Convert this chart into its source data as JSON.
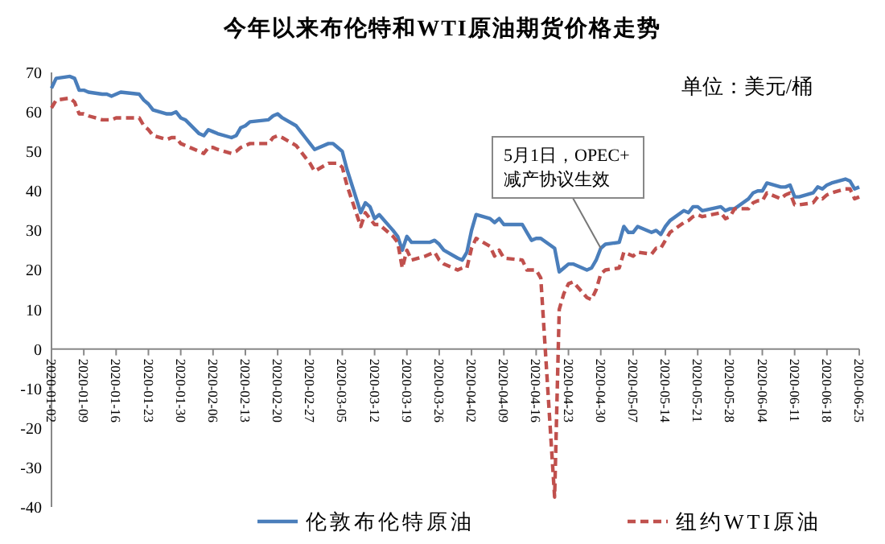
{
  "chart_data": {
    "type": "line",
    "title": "今年以来布伦特和WTI原油期货价格走势",
    "x": [
      "2020-01-02",
      "2020-01-03",
      "2020-01-06",
      "2020-01-07",
      "2020-01-08",
      "2020-01-09",
      "2020-01-10",
      "2020-01-13",
      "2020-01-14",
      "2020-01-15",
      "2020-01-16",
      "2020-01-17",
      "2020-01-21",
      "2020-01-22",
      "2020-01-23",
      "2020-01-24",
      "2020-01-27",
      "2020-01-28",
      "2020-01-29",
      "2020-01-30",
      "2020-01-31",
      "2020-02-03",
      "2020-02-04",
      "2020-02-05",
      "2020-02-06",
      "2020-02-07",
      "2020-02-10",
      "2020-02-11",
      "2020-02-12",
      "2020-02-13",
      "2020-02-14",
      "2020-02-18",
      "2020-02-19",
      "2020-02-20",
      "2020-02-21",
      "2020-02-24",
      "2020-02-25",
      "2020-02-26",
      "2020-02-27",
      "2020-02-28",
      "2020-03-02",
      "2020-03-03",
      "2020-03-04",
      "2020-03-05",
      "2020-03-06",
      "2020-03-09",
      "2020-03-10",
      "2020-03-11",
      "2020-03-12",
      "2020-03-13",
      "2020-03-16",
      "2020-03-17",
      "2020-03-18",
      "2020-03-19",
      "2020-03-20",
      "2020-03-23",
      "2020-03-24",
      "2020-03-25",
      "2020-03-26",
      "2020-03-27",
      "2020-03-30",
      "2020-03-31",
      "2020-04-01",
      "2020-04-02",
      "2020-04-03",
      "2020-04-06",
      "2020-04-07",
      "2020-04-08",
      "2020-04-09",
      "2020-04-13",
      "2020-04-14",
      "2020-04-15",
      "2020-04-16",
      "2020-04-17",
      "2020-04-20",
      "2020-04-21",
      "2020-04-22",
      "2020-04-23",
      "2020-04-24",
      "2020-04-27",
      "2020-04-28",
      "2020-04-29",
      "2020-04-30",
      "2020-05-01",
      "2020-05-04",
      "2020-05-05",
      "2020-05-06",
      "2020-05-07",
      "2020-05-08",
      "2020-05-11",
      "2020-05-12",
      "2020-05-13",
      "2020-05-14",
      "2020-05-15",
      "2020-05-18",
      "2020-05-19",
      "2020-05-20",
      "2020-05-21",
      "2020-05-22",
      "2020-05-26",
      "2020-05-27",
      "2020-05-28",
      "2020-05-29",
      "2020-06-01",
      "2020-06-02",
      "2020-06-03",
      "2020-06-04",
      "2020-06-05",
      "2020-06-08",
      "2020-06-09",
      "2020-06-10",
      "2020-06-11",
      "2020-06-12",
      "2020-06-15",
      "2020-06-16",
      "2020-06-17",
      "2020-06-18",
      "2020-06-19",
      "2020-06-22",
      "2020-06-23",
      "2020-06-24",
      "2020-06-25"
    ],
    "series": [
      {
        "name": "伦敦布伦特原油",
        "color": "#4a7ebb",
        "line_style": "solid",
        "values": [
          66,
          68.5,
          69,
          68.5,
          65.5,
          65.5,
          65,
          64.5,
          64.5,
          64,
          64.5,
          65,
          64.5,
          63,
          62,
          60.5,
          59.5,
          59.5,
          60,
          58.5,
          58,
          54.5,
          54,
          55.5,
          55,
          54.5,
          53.5,
          54,
          56,
          56.5,
          57.5,
          58,
          59,
          59.5,
          58.5,
          56.5,
          55,
          53.5,
          52,
          50.5,
          52,
          52,
          51,
          50,
          45.5,
          34.5,
          37,
          36,
          33,
          34,
          30,
          28.5,
          25,
          28.5,
          27,
          27,
          27,
          27.5,
          26.5,
          25,
          23,
          22.5,
          24.5,
          30,
          34,
          33,
          32,
          33,
          31.5,
          31.5,
          29.5,
          27.5,
          28,
          28,
          25.5,
          19.5,
          20.5,
          21.5,
          21.5,
          20,
          20.5,
          22.5,
          25.5,
          26.5,
          27,
          31,
          29.5,
          29.5,
          31,
          29.5,
          30,
          29,
          31,
          32.5,
          35,
          34.5,
          36,
          36,
          35,
          36,
          35,
          35.5,
          35.5,
          38,
          39.5,
          40,
          40,
          42,
          41,
          41,
          41.5,
          38.5,
          38.5,
          39.5,
          41,
          40.5,
          41.5,
          42,
          43,
          42.5,
          40.5,
          41
        ]
      },
      {
        "name": "纽约WTI原油",
        "color": "#c0504d",
        "line_style": "dashed",
        "values": [
          61,
          63,
          63.5,
          62.5,
          59.5,
          59.5,
          59,
          58,
          58,
          58,
          58.5,
          58.5,
          58.5,
          56.5,
          55.5,
          54,
          53,
          53.5,
          53.5,
          52,
          51.5,
          50,
          49.5,
          51,
          51,
          50.5,
          49.5,
          50,
          51,
          51.5,
          52,
          52,
          53.5,
          54,
          53.5,
          51.5,
          50,
          48.5,
          47,
          45,
          47,
          47,
          47,
          46,
          41.5,
          31,
          34.5,
          33,
          31.5,
          31.5,
          28.5,
          27,
          20.5,
          25,
          22.5,
          23.5,
          24,
          24.5,
          22.5,
          21.5,
          20,
          20.5,
          20.5,
          25.5,
          28,
          26,
          23.5,
          25,
          23,
          22.5,
          20,
          20,
          20,
          18,
          -37.5,
          10,
          14,
          16.5,
          17,
          13,
          12.5,
          15,
          19,
          20,
          20.5,
          24.5,
          24,
          23.5,
          24.5,
          24,
          25.5,
          25.5,
          27.5,
          29.5,
          32,
          32.5,
          33.5,
          34,
          33.5,
          34.5,
          33,
          33.5,
          35.5,
          35.5,
          37,
          37.5,
          37.5,
          39.5,
          38,
          39,
          39.5,
          36.5,
          36.5,
          37,
          38.5,
          38,
          39,
          39.5,
          40.5,
          40.5,
          38,
          38.5
        ]
      }
    ],
    "xlim": [
      "2020-01-02",
      "2020-06-25"
    ],
    "xticks": [
      "2020-01-02",
      "2020-01-09",
      "2020-01-16",
      "2020-01-23",
      "2020-01-30",
      "2020-02-06",
      "2020-02-13",
      "2020-02-20",
      "2020-02-27",
      "2020-03-05",
      "2020-03-12",
      "2020-03-19",
      "2020-03-26",
      "2020-04-02",
      "2020-04-09",
      "2020-04-16",
      "2020-04-23",
      "2020-04-30",
      "2020-05-07",
      "2020-05-14",
      "2020-05-21",
      "2020-05-28",
      "2020-06-04",
      "2020-06-11",
      "2020-06-18",
      "2020-06-25"
    ],
    "ylim": [
      -40,
      70
    ],
    "yticks": [
      -40,
      -30,
      -20,
      -10,
      0,
      10,
      20,
      30,
      40,
      50,
      60,
      70
    ],
    "grid": false,
    "legend": "bottom",
    "annotations": [
      "单位：美元/桶",
      {
        "text": "5月1日，OPEC+\n减产协议生效",
        "x": "2020-04-30",
        "y": 25.5
      }
    ]
  }
}
